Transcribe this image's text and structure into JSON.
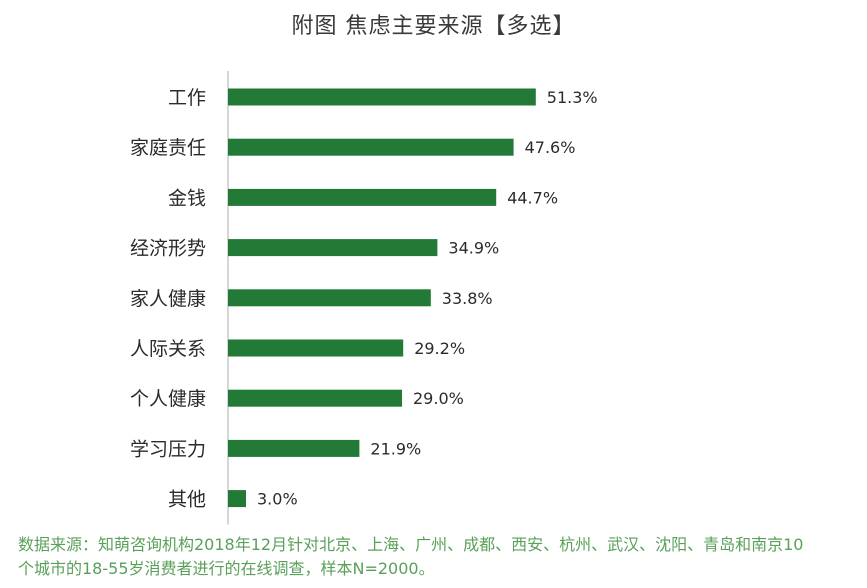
{
  "chart_data": {
    "type": "bar",
    "orientation": "horizontal",
    "title": "附图  焦虑主要来源【多选】",
    "categories": [
      "工作",
      "家庭责任",
      "金钱",
      "经济形势",
      "家人健康",
      "人际关系",
      "个人健康",
      "学习压力",
      "其他"
    ],
    "values": [
      51.3,
      47.6,
      44.7,
      34.9,
      33.8,
      29.2,
      29.0,
      21.9,
      3.0
    ],
    "value_labels": [
      "51.3%",
      "47.6%",
      "44.7%",
      "34.9%",
      "33.8%",
      "29.2%",
      "29.0%",
      "21.9%",
      "3.0%"
    ],
    "unit": "%",
    "xlim": [
      0,
      60
    ],
    "grid": false,
    "legend": "none",
    "bar_color": "#237a37",
    "axis_color": "#c8c8c8"
  },
  "footnote": {
    "line1": "数据来源：知萌咨询机构2018年12月针对北京、上海、广州、成都、西安、杭州、武汉、沈阳、青岛和南京10",
    "line2": "个城市的18-55岁消费者进行的在线调查，样本N=2000。"
  }
}
